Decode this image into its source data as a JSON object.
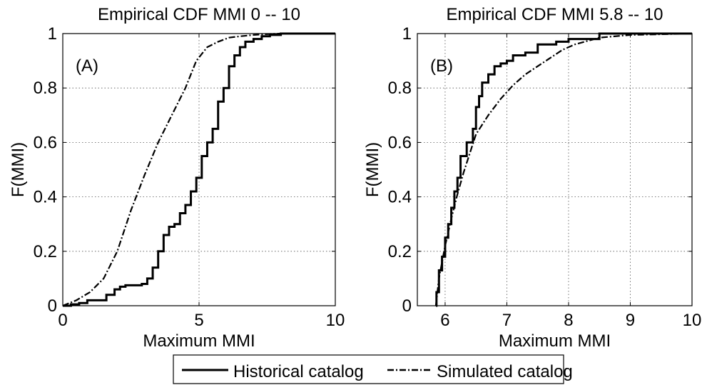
{
  "chart_data": [
    {
      "type": "line",
      "panel_label": "(A)",
      "title": "Empirical CDF MMI 0 -- 10",
      "xlabel": "Maximum MMI",
      "ylabel": "F(MMI)",
      "xlim": [
        0,
        10
      ],
      "ylim": [
        0,
        1
      ],
      "xticks": [
        0,
        5,
        10
      ],
      "yticks": [
        0,
        0.2,
        0.4,
        0.6,
        0.8,
        1
      ],
      "xtick_labels": [
        "0",
        "5",
        "10"
      ],
      "ytick_labels": [
        "0",
        "0.2",
        "0.4",
        "0.6",
        "0.8",
        "1"
      ],
      "grid": true,
      "series": [
        {
          "name": "Historical catalog",
          "style": "solid-step",
          "x": [
            0.0,
            0.3,
            0.6,
            0.9,
            1.3,
            1.6,
            1.9,
            2.1,
            2.3,
            2.6,
            2.9,
            3.1,
            3.3,
            3.5,
            3.7,
            3.9,
            4.1,
            4.3,
            4.5,
            4.7,
            4.9,
            5.1,
            5.3,
            5.5,
            5.7,
            5.9,
            6.1,
            6.3,
            6.5,
            6.7,
            7.0,
            7.3,
            7.6,
            8.0,
            8.5,
            10.0
          ],
          "y": [
            0.0,
            0.005,
            0.01,
            0.02,
            0.02,
            0.04,
            0.06,
            0.07,
            0.075,
            0.075,
            0.08,
            0.1,
            0.14,
            0.2,
            0.26,
            0.29,
            0.3,
            0.34,
            0.37,
            0.42,
            0.47,
            0.55,
            0.6,
            0.65,
            0.75,
            0.8,
            0.88,
            0.92,
            0.95,
            0.97,
            0.98,
            0.99,
            0.995,
            1.0,
            1.0,
            1.0
          ]
        },
        {
          "name": "Simulated catalog",
          "style": "dashdot",
          "x": [
            0.0,
            0.5,
            1.0,
            1.5,
            2.0,
            2.5,
            3.0,
            3.5,
            4.0,
            4.5,
            4.9,
            5.3,
            5.7,
            6.1,
            6.5,
            7.0,
            7.5,
            8.0,
            8.5,
            10.0
          ],
          "y": [
            0.0,
            0.02,
            0.05,
            0.1,
            0.2,
            0.35,
            0.48,
            0.6,
            0.7,
            0.8,
            0.9,
            0.95,
            0.97,
            0.985,
            0.99,
            0.995,
            0.998,
            1.0,
            1.0,
            1.0
          ]
        }
      ]
    },
    {
      "type": "line",
      "panel_label": "(B)",
      "title": "Empirical CDF MMI 5.8 -- 10",
      "xlabel": "Maximum MMI",
      "ylabel": "F(MMI)",
      "xlim": [
        5.55,
        10
      ],
      "ylim": [
        0,
        1
      ],
      "xticks": [
        6,
        7,
        8,
        9,
        10
      ],
      "yticks": [
        0,
        0.2,
        0.4,
        0.6,
        0.8,
        1
      ],
      "xtick_labels": [
        "6",
        "7",
        "8",
        "9",
        "10"
      ],
      "ytick_labels": [
        "0",
        "0.2",
        "0.4",
        "0.6",
        "0.8",
        "1"
      ],
      "grid": true,
      "series": [
        {
          "name": "Historical catalog",
          "style": "solid-step",
          "x": [
            5.85,
            5.86,
            5.9,
            5.95,
            6.0,
            6.05,
            6.1,
            6.15,
            6.2,
            6.25,
            6.35,
            6.45,
            6.5,
            6.55,
            6.6,
            6.7,
            6.8,
            6.9,
            7.0,
            7.1,
            7.3,
            7.5,
            7.6,
            7.8,
            8.0,
            8.5,
            10.0
          ],
          "y": [
            0.0,
            0.05,
            0.13,
            0.18,
            0.25,
            0.3,
            0.36,
            0.42,
            0.47,
            0.55,
            0.6,
            0.65,
            0.73,
            0.77,
            0.82,
            0.85,
            0.88,
            0.89,
            0.9,
            0.92,
            0.93,
            0.96,
            0.96,
            0.97,
            0.98,
            1.0,
            1.0
          ]
        },
        {
          "name": "Simulated catalog",
          "style": "dashdot",
          "x": [
            5.85,
            5.9,
            6.0,
            6.1,
            6.2,
            6.3,
            6.4,
            6.5,
            6.7,
            6.9,
            7.1,
            7.3,
            7.5,
            7.7,
            7.9,
            8.1,
            8.5,
            9.0,
            10.0
          ],
          "y": [
            0.0,
            0.1,
            0.22,
            0.32,
            0.41,
            0.49,
            0.56,
            0.63,
            0.7,
            0.76,
            0.81,
            0.85,
            0.88,
            0.91,
            0.94,
            0.96,
            0.985,
            0.995,
            1.0
          ]
        }
      ]
    }
  ],
  "legend": {
    "position": "bottom-center",
    "entries": [
      {
        "name": "Historical catalog",
        "style": "solid"
      },
      {
        "name": "Simulated catalog",
        "style": "dashdot"
      }
    ]
  },
  "colors": {
    "line": "#000000",
    "grid": "#555555",
    "background": "#ffffff"
  }
}
